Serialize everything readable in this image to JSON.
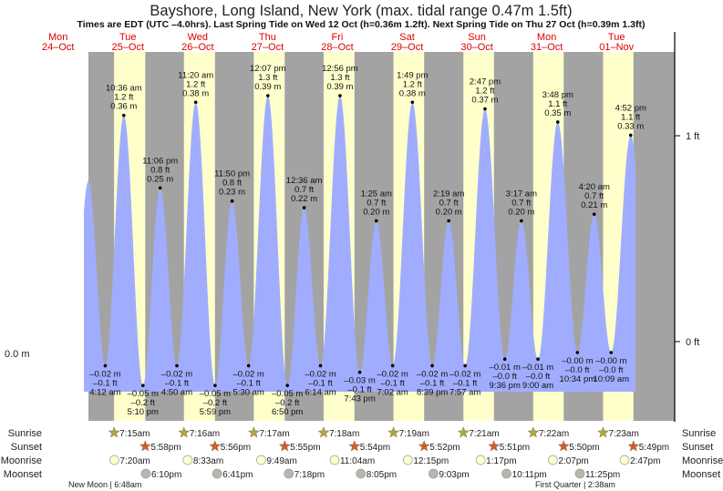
{
  "chart_data": {
    "type": "area",
    "title": "Bayshore, Long Island, New York (max. tidal range 0.47m 1.5ft)",
    "subtitle": "Times are EDT (UTC –4.0hrs). Last Spring Tide on Wed 12 Oct (h=0.36m 1.2ft). Next Spring Tide on Thu 27 Oct (h=0.39m 1.3ft)",
    "days": [
      {
        "dow": "Mon",
        "date": "24–Oct"
      },
      {
        "dow": "Tue",
        "date": "25–Oct"
      },
      {
        "dow": "Wed",
        "date": "26–Oct"
      },
      {
        "dow": "Thu",
        "date": "27–Oct"
      },
      {
        "dow": "Fri",
        "date": "28–Oct"
      },
      {
        "dow": "Sat",
        "date": "29–Oct"
      },
      {
        "dow": "Sun",
        "date": "30–Oct"
      },
      {
        "dow": "Mon",
        "date": "31–Oct"
      },
      {
        "dow": "Tue",
        "date": "01–Nov"
      }
    ],
    "left_axis": {
      "label": "0.0 m",
      "value_m": 0
    },
    "right_axis": [
      {
        "label": "1 ft",
        "value_ft": 1
      },
      {
        "label": "0 ft",
        "value_ft": 0
      }
    ],
    "unit_hours_from": "25-Oct 00:00",
    "extremes": [
      {
        "type": "H",
        "hours": -1.6,
        "m": 0.26,
        "labeled": false
      },
      {
        "type": "L",
        "hours": 4.2,
        "time": "4:12 am",
        "m": -0.02,
        "m_label": "–0.02 m",
        "ft_label": "–0.1 ft"
      },
      {
        "type": "H",
        "hours": 10.6,
        "time": "10:36 am",
        "m": 0.36,
        "m_label": "0.36 m",
        "ft_label": "1.2 ft"
      },
      {
        "type": "L",
        "hours": 17.17,
        "time": "5:10 pm",
        "m": -0.05,
        "m_label": "–0.05 m",
        "ft_label": "–0.2 ft"
      },
      {
        "type": "H",
        "hours": 23.1,
        "time": "11:06 pm",
        "m": 0.25,
        "m_label": "0.25 m",
        "ft_label": "0.8 ft"
      },
      {
        "type": "L",
        "hours": 28.83,
        "time": "4:50 am",
        "m": -0.02,
        "m_label": "–0.02 m",
        "ft_label": "–0.1 ft"
      },
      {
        "type": "H",
        "hours": 35.33,
        "time": "11:20 am",
        "m": 0.38,
        "m_label": "0.38 m",
        "ft_label": "1.2 ft"
      },
      {
        "type": "L",
        "hours": 41.98,
        "time": "5:59 pm",
        "m": -0.05,
        "m_label": "–0.05 m",
        "ft_label": "–0.2 ft"
      },
      {
        "type": "H",
        "hours": 47.83,
        "time": "11:50 pm",
        "m": 0.23,
        "m_label": "0.23 m",
        "ft_label": "0.8 ft"
      },
      {
        "type": "L",
        "hours": 53.5,
        "time": "5:30 am",
        "m": -0.02,
        "m_label": "–0.02 m",
        "ft_label": "–0.1 ft"
      },
      {
        "type": "H",
        "hours": 60.12,
        "time": "12:07 pm",
        "m": 0.39,
        "m_label": "0.39 m",
        "ft_label": "1.3 ft"
      },
      {
        "type": "L",
        "hours": 66.83,
        "time": "6:50 pm",
        "m": -0.05,
        "m_label": "–0.05 m",
        "ft_label": "–0.2 ft"
      },
      {
        "type": "H",
        "hours": 72.6,
        "time": "12:36 am",
        "m": 0.22,
        "m_label": "0.22 m",
        "ft_label": "0.7 ft"
      },
      {
        "type": "L",
        "hours": 78.23,
        "time": "6:14 am",
        "m": -0.02,
        "m_label": "–0.02 m",
        "ft_label": "–0.1 ft"
      },
      {
        "type": "H",
        "hours": 84.93,
        "time": "12:56 pm",
        "m": 0.39,
        "m_label": "0.39 m",
        "ft_label": "1.3 ft"
      },
      {
        "type": "L",
        "hours": 91.72,
        "time": "7:43 pm",
        "m": -0.03,
        "m_label": "–0.03 m",
        "ft_label": "–0.1 ft"
      },
      {
        "type": "H",
        "hours": 97.42,
        "time": "1:25 am",
        "m": 0.2,
        "m_label": "0.20 m",
        "ft_label": "0.7 ft"
      },
      {
        "type": "L",
        "hours": 103.03,
        "time": "7:02 am",
        "m": -0.02,
        "m_label": "–0.02 m",
        "ft_label": "–0.1 ft"
      },
      {
        "type": "H",
        "hours": 109.82,
        "time": "1:49 pm",
        "m": 0.38,
        "m_label": "0.38 m",
        "ft_label": "1.2 ft"
      },
      {
        "type": "L",
        "hours": 116.65,
        "time": "8:39 pm",
        "m": -0.02,
        "m_label": "–0.02 m",
        "ft_label": "–0.1 ft"
      },
      {
        "type": "H",
        "hours": 122.32,
        "time": "2:19 am",
        "m": 0.2,
        "m_label": "0.20 m",
        "ft_label": "0.7 ft"
      },
      {
        "type": "L",
        "hours": 127.95,
        "time": "7:57 am",
        "m": -0.02,
        "m_label": "–0.02 m",
        "ft_label": "–0.1 ft"
      },
      {
        "type": "H",
        "hours": 134.78,
        "time": "2:47 pm",
        "m": 0.37,
        "m_label": "0.37 m",
        "ft_label": "1.2 ft"
      },
      {
        "type": "L",
        "hours": 141.6,
        "time": "9:36 pm",
        "m": -0.01,
        "m_label": "–0.01 m",
        "ft_label": "–0.0 ft"
      },
      {
        "type": "H",
        "hours": 147.28,
        "time": "3:17 am",
        "m": 0.2,
        "m_label": "0.20 m",
        "ft_label": "0.7 ft"
      },
      {
        "type": "L",
        "hours": 153.0,
        "time": "9:00 am",
        "m": -0.01,
        "m_label": "–0.01 m",
        "ft_label": "–0.0 ft"
      },
      {
        "type": "H",
        "hours": 159.8,
        "time": "3:48 pm",
        "m": 0.35,
        "m_label": "0.35 m",
        "ft_label": "1.1 ft"
      },
      {
        "type": "L",
        "hours": 166.57,
        "time": "10:34 pm",
        "m": -0.0,
        "m_label": "–0.00 m",
        "ft_label": "–0.0 ft"
      },
      {
        "type": "H",
        "hours": 172.33,
        "time": "4:20 am",
        "m": 0.21,
        "m_label": "0.21 m",
        "ft_label": "0.7 ft"
      },
      {
        "type": "L",
        "hours": 178.15,
        "time": "10:09 am",
        "m": -0.0,
        "m_label": "–0.00 m",
        "ft_label": "–0.0 ft"
      },
      {
        "type": "H",
        "hours": 184.87,
        "time": "4:52 pm",
        "m": 0.33,
        "m_label": "0.33 m",
        "ft_label": "1.1 ft"
      }
    ],
    "rows": {
      "labels": {
        "sunrise": "Sunrise",
        "sunset": "Sunset",
        "moonrise": "Moonrise",
        "moonset": "Moonset"
      },
      "sunrise": [
        "7:15am",
        "7:16am",
        "7:17am",
        "7:18am",
        "7:19am",
        "7:21am",
        "7:22am",
        "7:23am"
      ],
      "sunset": [
        "5:58pm",
        "5:56pm",
        "5:55pm",
        "5:54pm",
        "5:52pm",
        "5:51pm",
        "5:50pm",
        "5:49pm"
      ],
      "moonrise": [
        "7:20am",
        "8:33am",
        "9:49am",
        "11:04am",
        "12:15pm",
        "1:17pm",
        "2:07pm",
        "2:47pm"
      ],
      "moonset": [
        "6:10pm",
        "6:41pm",
        "7:18pm",
        "8:05pm",
        "9:03pm",
        "10:11pm",
        "11:25pm"
      ]
    },
    "moon_phases": [
      {
        "label": "New Moon | 6:48am",
        "day": 0
      },
      {
        "label": "First Quarter | 2:38am",
        "day": 7
      }
    ],
    "colors": {
      "night": "#a3a3a3",
      "day": "#ffffcc",
      "water": "#a0adff",
      "date": "#dd0000",
      "sunrise": "#b5a82c",
      "sunset": "#d85a1f",
      "moonrise": "#ffffcc",
      "moonset": "#b7b7ab"
    }
  }
}
